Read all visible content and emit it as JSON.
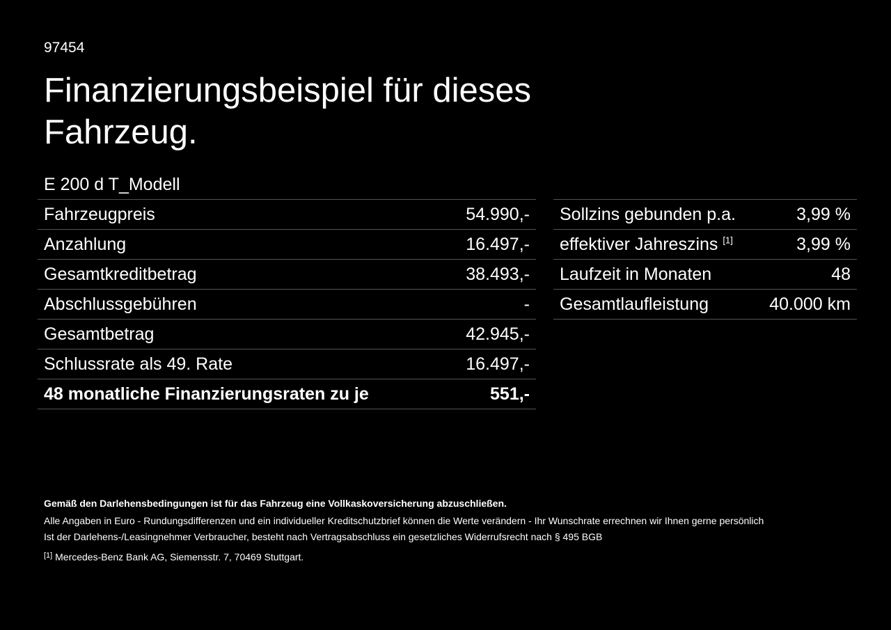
{
  "header": {
    "code": "97454",
    "title": "Finanzierungsbeispiel für dieses Fahrzeug.",
    "model": "E 200 d T_Modell"
  },
  "left_table": {
    "rows": [
      [
        "Fahrzeugpreis",
        "54.990,-"
      ],
      [
        "Anzahlung",
        "16.497,-"
      ],
      [
        "Gesamtkreditbetrag",
        "38.493,-"
      ],
      [
        "Abschlussgebühren",
        "-"
      ],
      [
        "Gesamtbetrag",
        "42.945,-"
      ],
      [
        "Schlussrate als 49. Rate",
        "16.497,-"
      ],
      [
        "48 monatliche Finanzierungsraten zu je",
        "551,-"
      ]
    ]
  },
  "right_table": {
    "rows": [
      [
        "Sollzins gebunden p.a.",
        "3,99 %"
      ],
      [
        "effektiver Jahreszins",
        "3,99 %"
      ],
      [
        "Laufzeit in Monaten",
        "48"
      ],
      [
        "Gesamtlaufleistung",
        "40.000 km"
      ]
    ],
    "footnote_mark": "[1]"
  },
  "footer": {
    "bold_note": "Gemäß den Darlehensbedingungen ist für das Fahrzeug eine Vollkaskoversicherung abzuschließen.",
    "line1": "Alle Angaben in Euro - Rundungsdifferenzen und ein individueller Kreditschutzbrief können die Werte verändern - Ihr Wunschrate errechnen wir Ihnen gerne persönlich",
    "line2": "Ist der Darlehens-/Leasingnehmer Verbraucher, besteht nach Vertragsabschluss ein gesetzliches Widerrufsrecht nach § 495 BGB",
    "footnote_mark": "[1]",
    "footnote": "Mercedes-Benz Bank AG, Siemensstr. 7, 70469 Stuttgart."
  }
}
